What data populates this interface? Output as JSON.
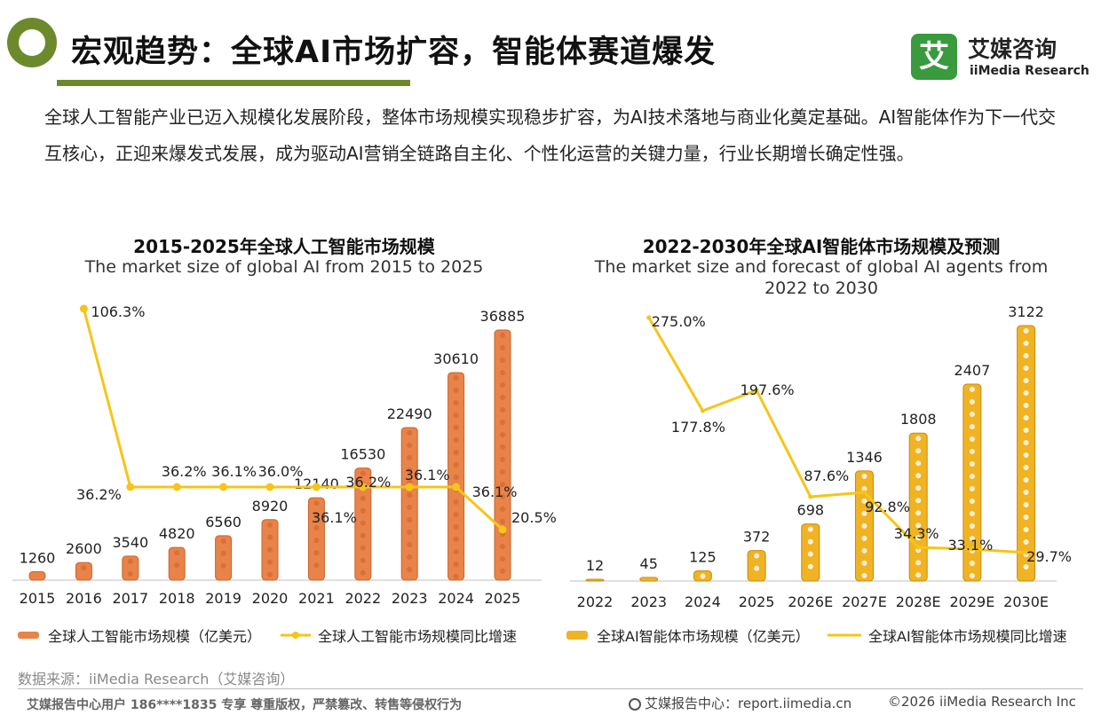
{
  "header": {
    "title": "宏观趋势：全球AI市场扩容，智能体赛道爆发",
    "brand_mark": "艾",
    "brand_cn": "艾媒咨询",
    "brand_en": "iiMedia Research"
  },
  "intro": "全球人工智能产业已迈入规模化发展阶段，整体市场规模实现稳步扩容，为AI技术落地与商业化奠定基础。AI智能体作为下一代交互核心，正迎来爆发式发展，成为驱动AI营销全链路自主化、个性化运营的关键力量，行业长期增长确定性强。",
  "chart_data": [
    {
      "type": "bar",
      "title": "2015-2025年全球人工智能市场规模",
      "subtitle": "The market size of global AI from 2015 to 2025",
      "categories": [
        "2015",
        "2016",
        "2017",
        "2018",
        "2019",
        "2020",
        "2021",
        "2022",
        "2023",
        "2024",
        "2025"
      ],
      "series": [
        {
          "name": "全球人工智能市场规模（亿美元）",
          "type": "bar",
          "color": "#e8834a",
          "values": [
            1260,
            2600,
            3540,
            4820,
            6560,
            8920,
            12140,
            16530,
            22490,
            30610,
            36885
          ]
        },
        {
          "name": "全球人工智能市场规模同比增速",
          "type": "line",
          "color": "#f5c518",
          "values": [
            null,
            106.3,
            36.2,
            36.2,
            36.1,
            36.0,
            36.1,
            36.2,
            36.1,
            36.1,
            20.5
          ]
        }
      ],
      "value_labels": [
        "1260",
        "2600",
        "3540",
        "4820",
        "6560",
        "8920",
        "12140",
        "16530",
        "22490",
        "30610",
        "36885"
      ],
      "growth_labels": [
        "",
        "106.3%",
        "36.2%",
        "36.2%",
        "36.1%",
        "36.0%",
        "36.1%",
        "36.2%",
        "36.1%",
        "36.1%",
        "20.5%"
      ]
    },
    {
      "type": "bar",
      "title": "2022-2030年全球AI智能体市场规模及预测",
      "subtitle": "The market size and forecast of global AI agents from 2022 to 2030",
      "categories": [
        "2022",
        "2023",
        "2024",
        "2025",
        "2026E",
        "2027E",
        "2028E",
        "2029E",
        "2030E"
      ],
      "series": [
        {
          "name": "全球AI智能体市场规模（亿美元）",
          "type": "bar",
          "color": "#f0b323",
          "values": [
            12,
            45,
            125,
            372,
            698,
            1346,
            1808,
            2407,
            3122
          ]
        },
        {
          "name": "全球AI智能体市场规模同比增速",
          "type": "line",
          "color": "#f5c518",
          "values": [
            null,
            275.0,
            177.8,
            197.6,
            87.6,
            92.8,
            34.3,
            33.1,
            29.7
          ]
        }
      ],
      "value_labels": [
        "12",
        "45",
        "125",
        "372",
        "698",
        "1346",
        "1808",
        "2407",
        "3122"
      ],
      "growth_labels": [
        "",
        "275.0%",
        "177.8%",
        "197.6%",
        "87.6%",
        "92.8%",
        "34.3%",
        "33.1%",
        "29.7%"
      ]
    }
  ],
  "source": "数据来源：iiMedia Research（艾媒咨询）",
  "footer": {
    "left": "艾媒报告中心用户 186****1835 专享 尊重版权，严禁篡改、转售等侵权行为",
    "middle": "艾媒报告中心：report.iimedia.cn",
    "right": "©2026  iiMedia Research  Inc"
  }
}
